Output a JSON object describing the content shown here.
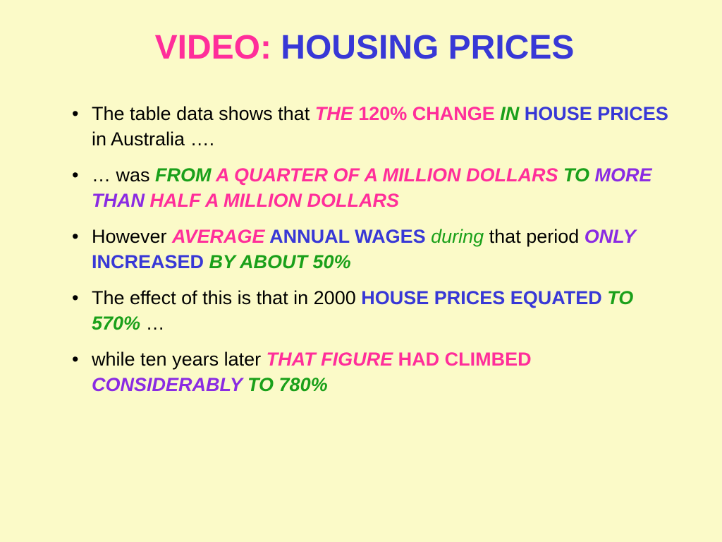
{
  "colors": {
    "background": "#fbfac8",
    "pink": "#ff2e9a",
    "blue": "#3838d6",
    "green": "#1aa01a",
    "purple": "#8a2be2",
    "black": "#000000"
  },
  "typography": {
    "title_fontsize": 48,
    "bullet_fontsize": 27,
    "font_family": "Arial"
  },
  "title": {
    "part1": "VIDEO:",
    "part2": " HOUSING PRICES"
  },
  "bullets": [
    {
      "runs": [
        {
          "text": "The table data shows that ",
          "cls": "black"
        },
        {
          "text": "THE",
          "cls": "pink bold italic"
        },
        {
          "text": " 120% CHANGE ",
          "cls": "pink bold"
        },
        {
          "text": "IN",
          "cls": "green bold italic"
        },
        {
          "text": " HOUSE PRICES",
          "cls": "blue bold"
        },
        {
          "text": " in Australia  ….",
          "cls": "black"
        }
      ]
    },
    {
      "runs": [
        {
          "text": "… was ",
          "cls": "black"
        },
        {
          "text": "FROM",
          "cls": "green bold italic"
        },
        {
          "text": " A QUARTER OF A MILLION DOLLARS ",
          "cls": "pink bold italic"
        },
        {
          "text": "TO",
          "cls": "green bold italic"
        },
        {
          "text": " MORE THAN",
          "cls": "purple bold italic"
        },
        {
          "text": " HALF A MILLION DOLLARS",
          "cls": "pink bold italic"
        }
      ]
    },
    {
      "runs": [
        {
          "text": "However ",
          "cls": "black"
        },
        {
          "text": "AVERAGE",
          "cls": "pink bold italic"
        },
        {
          "text": " ANNUAL WAGES ",
          "cls": "blue bold"
        },
        {
          "text": "during",
          "cls": "green italic"
        },
        {
          "text": " that period ",
          "cls": "black"
        },
        {
          "text": "ONLY",
          "cls": "purple bold italic"
        },
        {
          "text": " INCREASED ",
          "cls": "blue bold"
        },
        {
          "text": "BY ABOUT 50%",
          "cls": "green bold italic"
        }
      ]
    },
    {
      "runs": [
        {
          "text": "The effect of this is that in 2000 ",
          "cls": "black"
        },
        {
          "text": "HOUSE PRICES EQUATED ",
          "cls": "blue bold"
        },
        {
          "text": "TO 570%",
          "cls": "green bold italic"
        },
        {
          "text": " …",
          "cls": "black"
        }
      ]
    },
    {
      "runs": [
        {
          "text": "while ten years later ",
          "cls": "black"
        },
        {
          "text": "THAT FIGURE",
          "cls": "pink bold italic"
        },
        {
          "text": " HAD CLIMBED ",
          "cls": "pink bold"
        },
        {
          "text": "CONSIDERABLY",
          "cls": "purple bold italic"
        },
        {
          "text": " TO 780%",
          "cls": "green bold italic"
        }
      ]
    }
  ]
}
